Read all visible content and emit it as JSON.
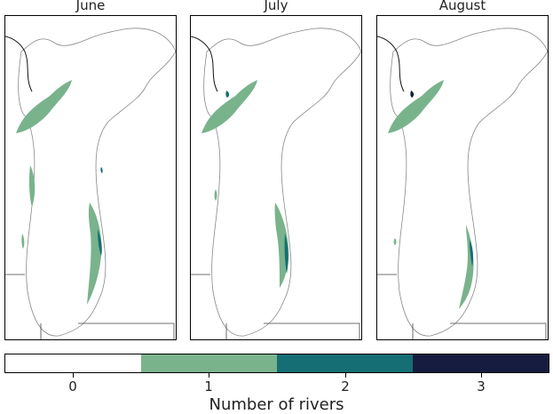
{
  "panels": [
    {
      "title": "June"
    },
    {
      "title": "July"
    },
    {
      "title": "August"
    }
  ],
  "colorbar": {
    "label": "Number of rivers",
    "ticks": [
      "0",
      "1",
      "2",
      "3"
    ],
    "colors": [
      "#ffffff",
      "#79b38c",
      "#146e73",
      "#161c40"
    ]
  }
}
